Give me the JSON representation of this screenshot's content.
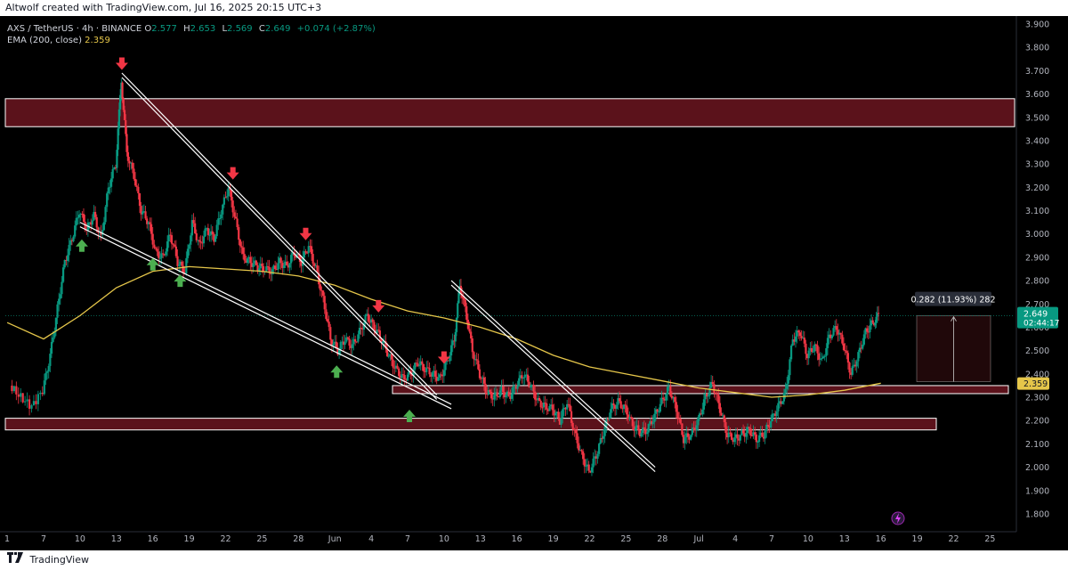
{
  "header": {
    "caption": "Altwolf created with TradingView.com, Jul 16, 2025 20:15 UTC+3"
  },
  "legend": {
    "symbol": "AXS / TetherUS · 4h · BINANCE",
    "ohlc": [
      {
        "label": "O",
        "value": "2.577"
      },
      {
        "label": "H",
        "value": "2.653"
      },
      {
        "label": "L",
        "value": "2.569"
      },
      {
        "label": "C",
        "value": "2.649"
      },
      {
        "label": "",
        "value": "+0.074 (+2.87%)"
      }
    ],
    "ema_label": "EMA (200, close)",
    "ema_value": "2.359"
  },
  "footer": {
    "brand": "TradingView"
  },
  "colors": {
    "up": "#089981",
    "down": "#f23645",
    "ema": "#e5c64a",
    "zone_fill": "#6b1520",
    "price_tag": "#089981",
    "arrow_up": "#4caf50",
    "arrow_down": "#f23645"
  },
  "chart_data": {
    "type": "candlestick",
    "symbol": "AXS/USDT",
    "timeframe": "4h",
    "ylim": [
      1.75,
      3.92
    ],
    "y_ticks": [
      "3.900",
      "3.800",
      "3.700",
      "3.600",
      "3.500",
      "3.400",
      "3.300",
      "3.200",
      "3.100",
      "3.000",
      "2.900",
      "2.800",
      "2.700",
      "2.600",
      "2.500",
      "2.400",
      "2.300",
      "2.200",
      "2.100",
      "2.000",
      "1.900",
      "1.800"
    ],
    "x_ticks": [
      "7",
      "10",
      "13",
      "16",
      "19",
      "22",
      "25",
      "28",
      "Jun",
      "4",
      "7",
      "10",
      "13",
      "16",
      "19",
      "22",
      "25",
      "28",
      "Jul",
      "4",
      "7",
      "10",
      "13",
      "16",
      "19",
      "22",
      "25"
    ],
    "x_tick_index": [
      0,
      1,
      2,
      3,
      4,
      5,
      6,
      7,
      8,
      9,
      10,
      11,
      12,
      13,
      14,
      15,
      16,
      17,
      18,
      19,
      20,
      21,
      22,
      23,
      24,
      25,
      26
    ],
    "price_path": [
      [
        -0.9,
        2.35
      ],
      [
        -0.6,
        2.3
      ],
      [
        -0.3,
        2.26
      ],
      [
        0.0,
        2.33
      ],
      [
        0.2,
        2.48
      ],
      [
        0.4,
        2.68
      ],
      [
        0.6,
        2.88
      ],
      [
        0.8,
        2.98
      ],
      [
        1.0,
        3.1
      ],
      [
        1.2,
        3.02
      ],
      [
        1.4,
        3.08
      ],
      [
        1.6,
        2.98
      ],
      [
        1.8,
        3.2
      ],
      [
        2.0,
        3.3
      ],
      [
        2.15,
        3.66
      ],
      [
        2.3,
        3.35
      ],
      [
        2.5,
        3.25
      ],
      [
        2.7,
        3.1
      ],
      [
        2.9,
        3.05
      ],
      [
        3.1,
        2.92
      ],
      [
        3.3,
        2.9
      ],
      [
        3.5,
        3.0
      ],
      [
        3.7,
        2.88
      ],
      [
        3.9,
        2.84
      ],
      [
        4.1,
        3.05
      ],
      [
        4.3,
        2.95
      ],
      [
        4.5,
        3.02
      ],
      [
        4.7,
        2.98
      ],
      [
        4.9,
        3.1
      ],
      [
        5.1,
        3.2
      ],
      [
        5.3,
        3.05
      ],
      [
        5.5,
        2.9
      ],
      [
        5.7,
        2.88
      ],
      [
        5.9,
        2.86
      ],
      [
        6.1,
        2.85
      ],
      [
        6.3,
        2.84
      ],
      [
        6.5,
        2.88
      ],
      [
        6.7,
        2.86
      ],
      [
        6.9,
        2.92
      ],
      [
        7.1,
        2.88
      ],
      [
        7.3,
        2.95
      ],
      [
        7.5,
        2.85
      ],
      [
        7.7,
        2.72
      ],
      [
        7.9,
        2.55
      ],
      [
        8.1,
        2.5
      ],
      [
        8.3,
        2.55
      ],
      [
        8.5,
        2.52
      ],
      [
        8.7,
        2.58
      ],
      [
        8.9,
        2.65
      ],
      [
        9.1,
        2.6
      ],
      [
        9.3,
        2.55
      ],
      [
        9.5,
        2.48
      ],
      [
        9.7,
        2.42
      ],
      [
        9.9,
        2.38
      ],
      [
        10.1,
        2.4
      ],
      [
        10.3,
        2.45
      ],
      [
        10.5,
        2.42
      ],
      [
        10.7,
        2.4
      ],
      [
        10.9,
        2.38
      ],
      [
        11.1,
        2.45
      ],
      [
        11.3,
        2.55
      ],
      [
        11.45,
        2.78
      ],
      [
        11.6,
        2.68
      ],
      [
        11.8,
        2.5
      ],
      [
        12.0,
        2.4
      ],
      [
        12.2,
        2.32
      ],
      [
        12.4,
        2.3
      ],
      [
        12.6,
        2.33
      ],
      [
        12.8,
        2.3
      ],
      [
        13.0,
        2.35
      ],
      [
        13.2,
        2.4
      ],
      [
        13.4,
        2.35
      ],
      [
        13.6,
        2.28
      ],
      [
        13.8,
        2.26
      ],
      [
        14.0,
        2.25
      ],
      [
        14.2,
        2.2
      ],
      [
        14.4,
        2.28
      ],
      [
        14.6,
        2.15
      ],
      [
        14.8,
        2.05
      ],
      [
        15.0,
        1.98
      ],
      [
        15.2,
        2.05
      ],
      [
        15.4,
        2.15
      ],
      [
        15.6,
        2.25
      ],
      [
        15.8,
        2.28
      ],
      [
        16.0,
        2.25
      ],
      [
        16.2,
        2.18
      ],
      [
        16.4,
        2.15
      ],
      [
        16.6,
        2.16
      ],
      [
        16.8,
        2.22
      ],
      [
        17.0,
        2.28
      ],
      [
        17.2,
        2.34
      ],
      [
        17.4,
        2.25
      ],
      [
        17.6,
        2.12
      ],
      [
        17.8,
        2.14
      ],
      [
        18.0,
        2.2
      ],
      [
        18.2,
        2.3
      ],
      [
        18.4,
        2.36
      ],
      [
        18.6,
        2.25
      ],
      [
        18.8,
        2.14
      ],
      [
        19.0,
        2.12
      ],
      [
        19.2,
        2.14
      ],
      [
        19.4,
        2.16
      ],
      [
        19.6,
        2.12
      ],
      [
        19.8,
        2.14
      ],
      [
        20.0,
        2.2
      ],
      [
        20.2,
        2.26
      ],
      [
        20.4,
        2.32
      ],
      [
        20.6,
        2.55
      ],
      [
        20.8,
        2.58
      ],
      [
        21.0,
        2.48
      ],
      [
        21.2,
        2.52
      ],
      [
        21.4,
        2.45
      ],
      [
        21.6,
        2.56
      ],
      [
        21.8,
        2.6
      ],
      [
        22.0,
        2.52
      ],
      [
        22.2,
        2.4
      ],
      [
        22.4,
        2.48
      ],
      [
        22.6,
        2.58
      ],
      [
        22.8,
        2.62
      ],
      [
        22.95,
        2.649
      ]
    ],
    "ema_200": [
      [
        -1.0,
        2.62
      ],
      [
        0.0,
        2.55
      ],
      [
        1.0,
        2.65
      ],
      [
        2.0,
        2.77
      ],
      [
        3.0,
        2.84
      ],
      [
        4.0,
        2.86
      ],
      [
        5.0,
        2.85
      ],
      [
        6.0,
        2.84
      ],
      [
        7.0,
        2.82
      ],
      [
        8.0,
        2.78
      ],
      [
        9.0,
        2.72
      ],
      [
        10.0,
        2.67
      ],
      [
        11.0,
        2.64
      ],
      [
        12.0,
        2.6
      ],
      [
        13.0,
        2.55
      ],
      [
        14.0,
        2.48
      ],
      [
        15.0,
        2.43
      ],
      [
        16.0,
        2.4
      ],
      [
        17.0,
        2.37
      ],
      [
        18.0,
        2.34
      ],
      [
        19.0,
        2.32
      ],
      [
        20.0,
        2.3
      ],
      [
        21.0,
        2.31
      ],
      [
        22.0,
        2.33
      ],
      [
        23.0,
        2.36
      ]
    ],
    "ema_last": "2.359",
    "current_price": "2.649",
    "countdown": "02:44:17",
    "horizontal_zones": [
      [
        3.46,
        3.58
      ],
      [
        2.33,
        2.35
      ],
      [
        2.16,
        2.21
      ]
    ],
    "trendlines": [
      [
        [
          2.15,
          3.69
        ],
        [
          10.8,
          2.31
        ]
      ],
      [
        [
          1.0,
          3.05
        ],
        [
          11.2,
          2.27
        ]
      ],
      [
        [
          11.2,
          2.8
        ],
        [
          16.8,
          2.0
        ]
      ]
    ],
    "down_arrows": [
      [
        2.15,
        3.73
      ],
      [
        5.2,
        3.26
      ],
      [
        7.2,
        3.0
      ],
      [
        9.2,
        2.69
      ],
      [
        11.0,
        2.47
      ]
    ],
    "up_arrows": [
      [
        1.05,
        2.95
      ],
      [
        3.0,
        2.87
      ],
      [
        3.75,
        2.8
      ],
      [
        8.05,
        2.41
      ],
      [
        10.05,
        2.22
      ]
    ],
    "measure": {
      "label": "0.282 (11.93%) 282",
      "from": 2.367,
      "to": 2.649
    },
    "current_price_tag": "2.649",
    "ema_price_tag": "2.359",
    "current_price_color": "#089981"
  }
}
